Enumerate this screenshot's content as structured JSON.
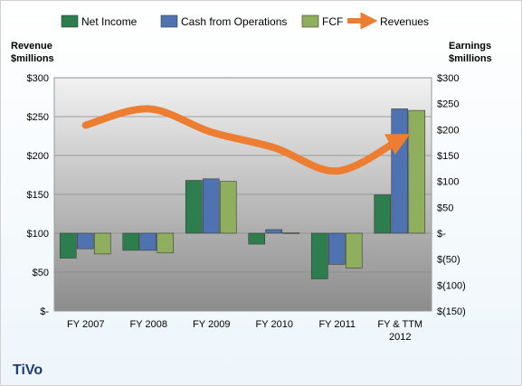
{
  "chart_data": {
    "type": "bar",
    "title": "TiVo",
    "categories": [
      "FY 2007",
      "FY 2008",
      "FY 2009",
      "FY 2010",
      "FY 2011",
      "FY & TTM 2012"
    ],
    "series": [
      {
        "name": "Net Income",
        "axis": "right",
        "color": "#2e7d4f",
        "values": [
          -48,
          -33,
          102,
          -21,
          -88,
          74
        ]
      },
      {
        "name": "Cash from Operations",
        "axis": "right",
        "color": "#4f73b0",
        "values": [
          -30,
          -33,
          105,
          7,
          -60,
          240
        ]
      },
      {
        "name": "FCF",
        "axis": "right",
        "color": "#8fae5e",
        "values": [
          -40,
          -38,
          100,
          1,
          -67,
          237
        ]
      },
      {
        "name": "Revenues",
        "axis": "left",
        "type": "line",
        "color": "#ed7d31",
        "values": [
          239,
          260,
          230,
          210,
          180,
          221
        ]
      }
    ],
    "left_axis": {
      "label": "Revenue\n$millions",
      "range": [
        0,
        300
      ],
      "ticks": [
        0,
        50,
        100,
        150,
        200,
        250,
        300
      ],
      "tick_labels": [
        "$-",
        "$50",
        "$100",
        "$150",
        "$200",
        "$250",
        "$300"
      ]
    },
    "right_axis": {
      "label": "Earnings\n$millions",
      "range": [
        -150,
        300
      ],
      "ticks": [
        -150,
        -100,
        -50,
        0,
        50,
        100,
        150,
        200,
        250,
        300
      ],
      "tick_labels": [
        "$(150)",
        "$(100)",
        "$(50)",
        "$-",
        "$50",
        "$100",
        "$150",
        "$200",
        "$250",
        "$300"
      ]
    },
    "legend_position": "top",
    "grid": true
  }
}
